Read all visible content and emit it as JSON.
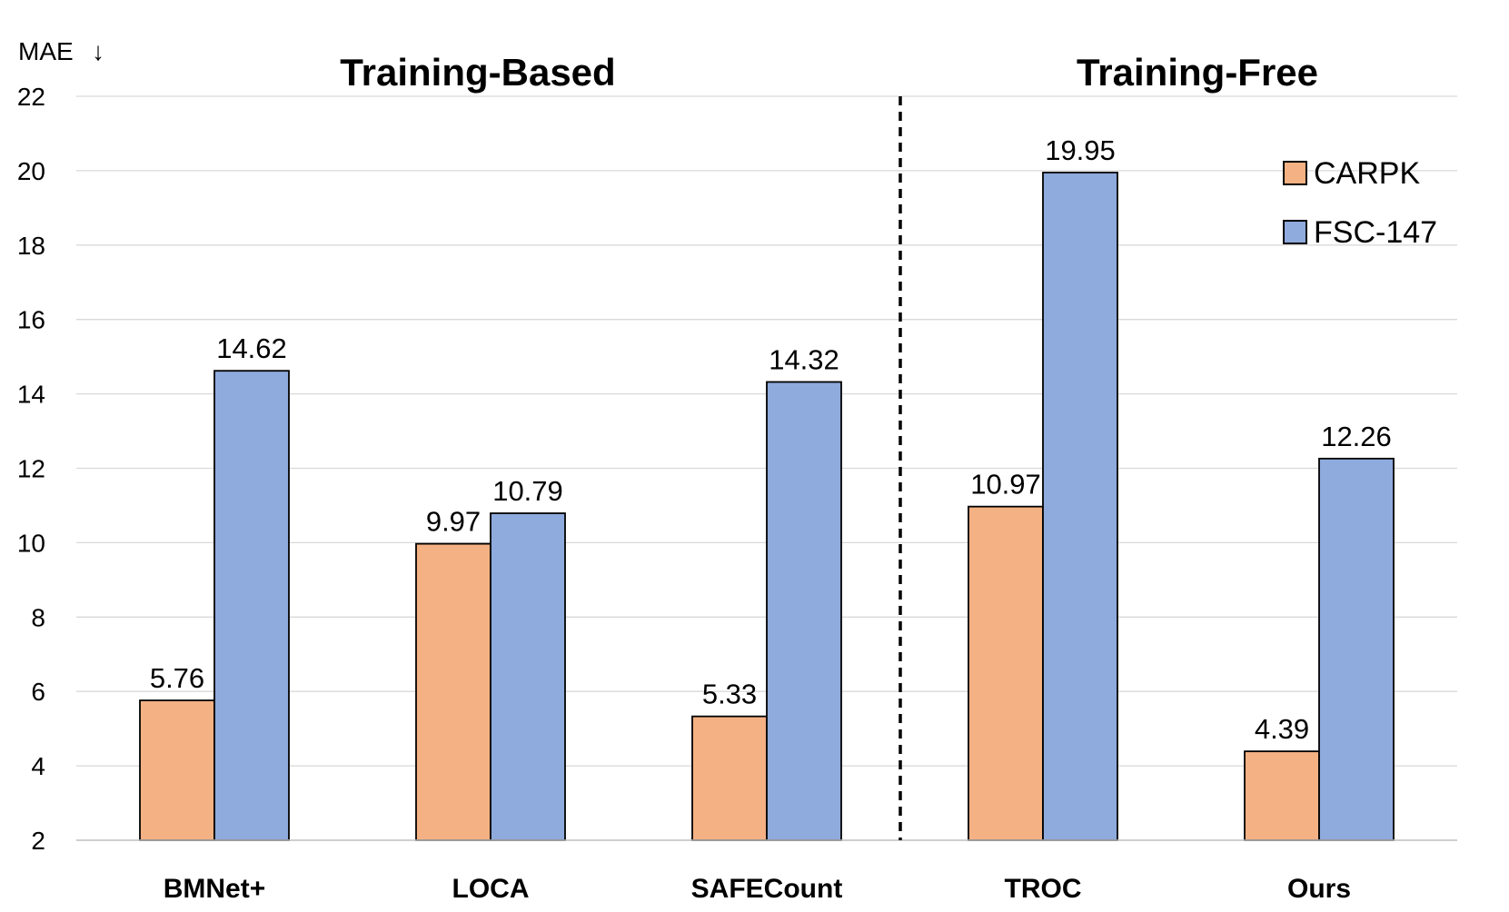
{
  "chart_data": {
    "type": "bar",
    "ylabel": "MAE",
    "ylabel_arrow": "↓",
    "ylim": [
      2,
      22
    ],
    "yticks": [
      2,
      4,
      6,
      8,
      10,
      12,
      14,
      16,
      18,
      20,
      22
    ],
    "grid": true,
    "categories": [
      "BMNet+",
      "LOCA",
      "SAFECount",
      "TROC",
      "Ours"
    ],
    "series": [
      {
        "name": "CARPK",
        "color": "#F4B183",
        "values": [
          5.76,
          9.97,
          5.33,
          10.97,
          4.39
        ],
        "labels": [
          "5.76",
          "9.97",
          "5.33",
          "10.97",
          "4.39"
        ]
      },
      {
        "name": "FSC-147",
        "color": "#8FAADC",
        "values": [
          14.62,
          10.79,
          14.32,
          19.95,
          12.26
        ],
        "labels": [
          "14.62",
          "10.79",
          "14.32",
          "19.95",
          "12.26"
        ]
      }
    ],
    "groups": [
      {
        "title": "Training-Based",
        "categories": [
          "BMNet+",
          "LOCA",
          "SAFECount"
        ]
      },
      {
        "title": "Training-Free",
        "categories": [
          "TROC",
          "Ours"
        ]
      }
    ],
    "legend_position": "top-right"
  }
}
